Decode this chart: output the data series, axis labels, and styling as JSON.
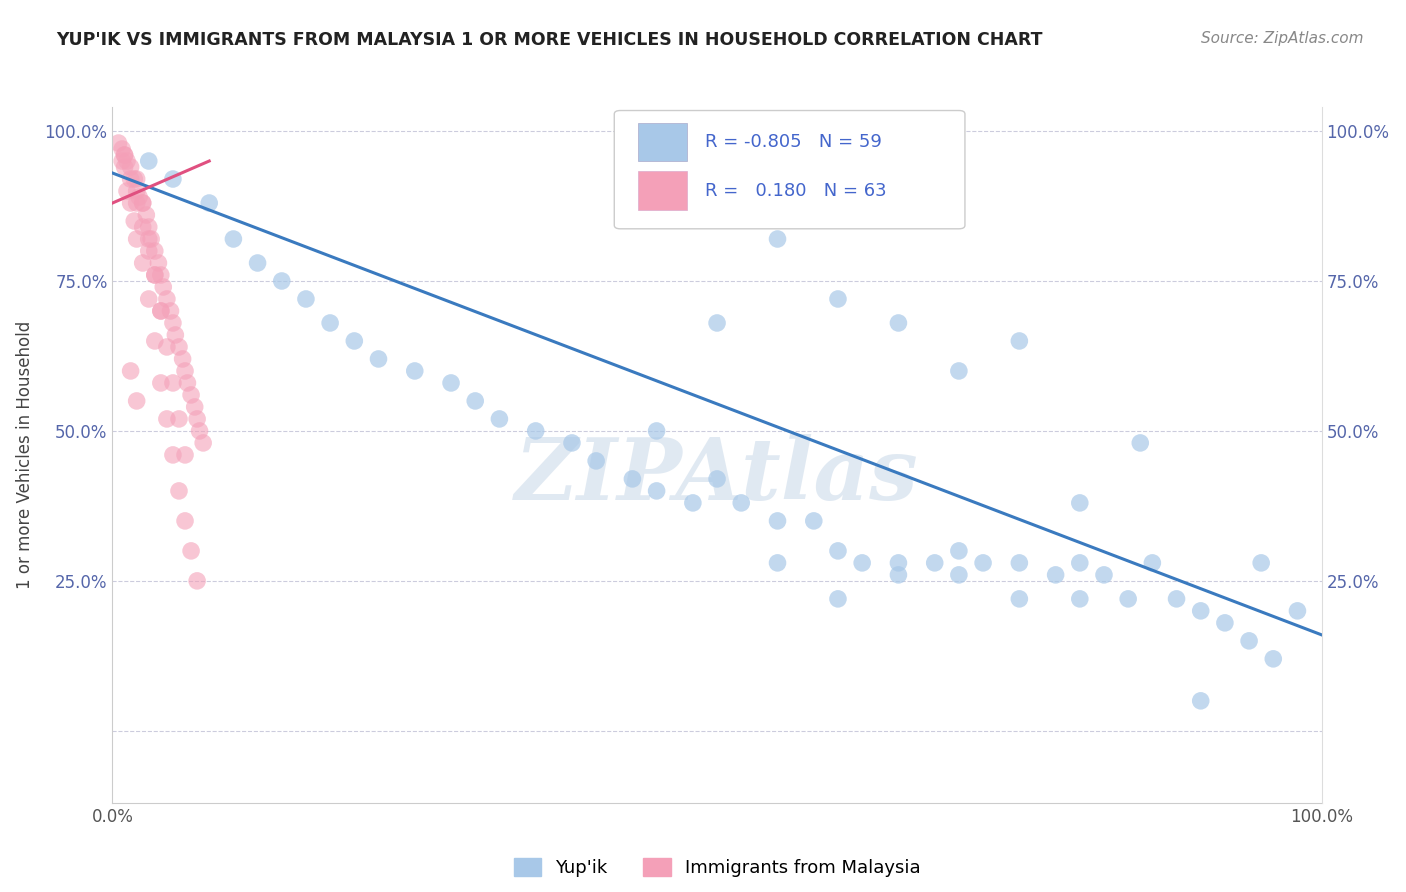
{
  "title": "YUP'IK VS IMMIGRANTS FROM MALAYSIA 1 OR MORE VEHICLES IN HOUSEHOLD CORRELATION CHART",
  "source": "Source: ZipAtlas.com",
  "ylabel": "1 or more Vehicles in Household",
  "watermark": "ZIPAtlas",
  "legend1_R": "-0.805",
  "legend1_N": "59",
  "legend2_R": "0.180",
  "legend2_N": "63",
  "blue_color": "#a8c8e8",
  "pink_color": "#f4a0b8",
  "line_color": "#3a7abf",
  "pink_line_color": "#e05080",
  "blue_x": [
    0.03,
    0.05,
    0.08,
    0.1,
    0.12,
    0.14,
    0.16,
    0.18,
    0.2,
    0.22,
    0.25,
    0.28,
    0.3,
    0.32,
    0.35,
    0.38,
    0.4,
    0.43,
    0.45,
    0.48,
    0.5,
    0.52,
    0.55,
    0.58,
    0.6,
    0.62,
    0.65,
    0.68,
    0.7,
    0.72,
    0.75,
    0.78,
    0.8,
    0.82,
    0.84,
    0.86,
    0.88,
    0.9,
    0.92,
    0.94,
    0.96,
    0.98,
    0.5,
    0.55,
    0.6,
    0.65,
    0.7,
    0.75,
    0.8,
    0.85,
    0.45,
    0.6,
    0.7,
    0.8,
    0.9,
    0.95,
    0.55,
    0.65,
    0.75
  ],
  "blue_y": [
    0.95,
    0.92,
    0.88,
    0.82,
    0.78,
    0.75,
    0.72,
    0.68,
    0.65,
    0.62,
    0.6,
    0.58,
    0.55,
    0.52,
    0.5,
    0.48,
    0.45,
    0.42,
    0.4,
    0.38,
    0.42,
    0.38,
    0.35,
    0.35,
    0.3,
    0.28,
    0.26,
    0.28,
    0.26,
    0.28,
    0.28,
    0.26,
    0.28,
    0.26,
    0.22,
    0.28,
    0.22,
    0.2,
    0.18,
    0.15,
    0.12,
    0.2,
    0.68,
    0.82,
    0.72,
    0.68,
    0.6,
    0.65,
    0.38,
    0.48,
    0.5,
    0.22,
    0.3,
    0.22,
    0.05,
    0.28,
    0.28,
    0.28,
    0.22
  ],
  "pink_x": [
    0.005,
    0.008,
    0.01,
    0.012,
    0.015,
    0.018,
    0.02,
    0.022,
    0.025,
    0.028,
    0.03,
    0.032,
    0.035,
    0.038,
    0.04,
    0.042,
    0.045,
    0.048,
    0.05,
    0.052,
    0.055,
    0.058,
    0.06,
    0.062,
    0.065,
    0.068,
    0.07,
    0.072,
    0.075,
    0.008,
    0.01,
    0.012,
    0.015,
    0.018,
    0.02,
    0.025,
    0.03,
    0.035,
    0.04,
    0.045,
    0.05,
    0.055,
    0.06,
    0.065,
    0.07,
    0.02,
    0.025,
    0.03,
    0.035,
    0.04,
    0.045,
    0.05,
    0.055,
    0.06,
    0.01,
    0.015,
    0.02,
    0.025,
    0.03,
    0.035,
    0.04,
    0.015,
    0.02
  ],
  "pink_y": [
    0.98,
    0.97,
    0.96,
    0.95,
    0.94,
    0.92,
    0.9,
    0.89,
    0.88,
    0.86,
    0.84,
    0.82,
    0.8,
    0.78,
    0.76,
    0.74,
    0.72,
    0.7,
    0.68,
    0.66,
    0.64,
    0.62,
    0.6,
    0.58,
    0.56,
    0.54,
    0.52,
    0.5,
    0.48,
    0.95,
    0.94,
    0.9,
    0.88,
    0.85,
    0.82,
    0.78,
    0.72,
    0.65,
    0.58,
    0.52,
    0.46,
    0.4,
    0.35,
    0.3,
    0.25,
    0.92,
    0.88,
    0.82,
    0.76,
    0.7,
    0.64,
    0.58,
    0.52,
    0.46,
    0.96,
    0.92,
    0.88,
    0.84,
    0.8,
    0.76,
    0.7,
    0.6,
    0.55
  ],
  "blue_line_x0": 0.0,
  "blue_line_y0": 0.93,
  "blue_line_x1": 1.0,
  "blue_line_y1": 0.16,
  "pink_line_x0": 0.0,
  "pink_line_y0": 0.88,
  "pink_line_x1": 0.08,
  "pink_line_y1": 0.95,
  "xlim_min": 0.0,
  "xlim_max": 1.0,
  "ylim_min": -0.12,
  "ylim_max": 1.04
}
